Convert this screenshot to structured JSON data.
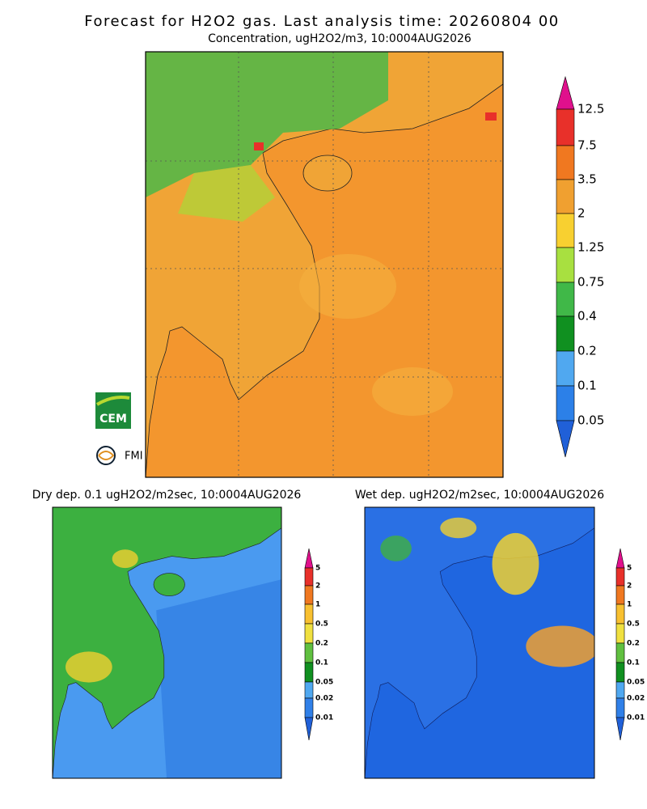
{
  "header": {
    "title": "Forecast for H2O2 gas. Last analysis time: 20260804 00",
    "subtitle": "Concentration, ugH2O2/m3, 10:0004AUG2026"
  },
  "main_colorbar": {
    "labels": [
      "12.5",
      "7.5",
      "3.5",
      "2",
      "1.25",
      "0.75",
      "0.4",
      "0.2",
      "0.1",
      "0.05"
    ]
  },
  "panels": [
    {
      "title": "Dry dep. 0.1 ugH2O2/m2sec, 10:0004AUG2026",
      "colorbar_labels": [
        "5",
        "2",
        "1",
        "0.5",
        "0.2",
        "0.1",
        "0.05",
        "0.02",
        "0.01"
      ]
    },
    {
      "title": "Wet dep. ugH2O2/m2sec, 10:0004AUG2026",
      "colorbar_labels": [
        "5",
        "2",
        "1",
        "0.5",
        "0.2",
        "0.1",
        "0.05",
        "0.02",
        "0.01"
      ]
    }
  ],
  "logos": {
    "cem": "CEM",
    "fmi": "FMI"
  }
}
